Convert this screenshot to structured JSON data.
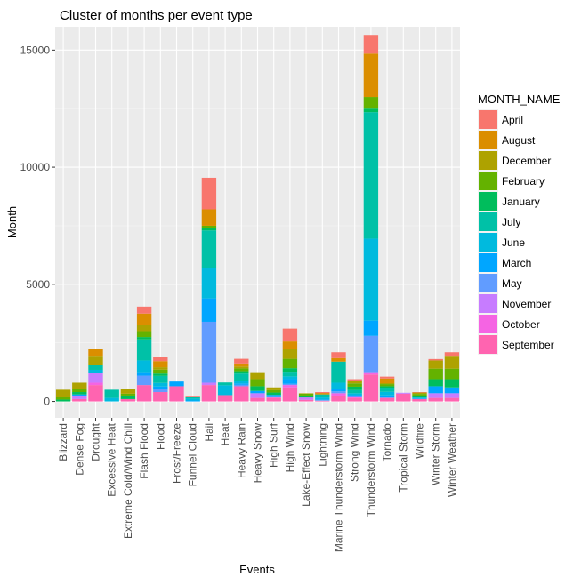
{
  "chart_data": {
    "type": "bar",
    "stacked": true,
    "title": "Cluster of months per event type",
    "xlabel": "Events",
    "ylabel": "Month",
    "ylim": [
      -700,
      16000
    ],
    "yticks": [
      0,
      5000,
      10000,
      15000
    ],
    "grid": true,
    "legend": {
      "title": "MONTH_NAME",
      "position": "right",
      "items": [
        {
          "name": "April",
          "color": "#F8766D"
        },
        {
          "name": "August",
          "color": "#DB8E00"
        },
        {
          "name": "December",
          "color": "#AEA200"
        },
        {
          "name": "February",
          "color": "#64B200"
        },
        {
          "name": "January",
          "color": "#00BD5C"
        },
        {
          "name": "July",
          "color": "#00C1A7"
        },
        {
          "name": "June",
          "color": "#00BADE"
        },
        {
          "name": "March",
          "color": "#00A6FF"
        },
        {
          "name": "May",
          "color": "#619CFF"
        },
        {
          "name": "November",
          "color": "#C77CFF"
        },
        {
          "name": "October",
          "color": "#F564E3"
        },
        {
          "name": "September",
          "color": "#FF64B0"
        }
      ]
    },
    "categories": [
      "Blizzard",
      "Dense Fog",
      "Drought",
      "Excessive Heat",
      "Extreme Cold/Wind Chill",
      "Flash Flood",
      "Flood",
      "Frost/Freeze",
      "Funnel Cloud",
      "Hail",
      "Heat",
      "Heavy Rain",
      "Heavy Snow",
      "High Surf",
      "High Wind",
      "Lake-Effect Snow",
      "Lightning",
      "Marine Thunderstorm Wind",
      "Strong Wind",
      "Thunderstorm Wind",
      "Tornado",
      "Tropical Storm",
      "Wildfire",
      "Winter Storm",
      "Winter Weather"
    ],
    "series": [
      {
        "name": "April",
        "values": [
          0,
          0,
          0,
          0,
          0,
          300,
          180,
          0,
          40,
          1350,
          0,
          200,
          0,
          0,
          550,
          0,
          40,
          250,
          60,
          800,
          80,
          0,
          20,
          60,
          150
        ]
      },
      {
        "name": "August",
        "values": [
          0,
          0,
          300,
          0,
          0,
          500,
          260,
          0,
          20,
          700,
          0,
          130,
          0,
          0,
          320,
          0,
          60,
          150,
          0,
          1850,
          200,
          0,
          0,
          0,
          0
        ]
      },
      {
        "name": "December",
        "values": [
          320,
          250,
          400,
          0,
          200,
          250,
          100,
          0,
          0,
          0,
          0,
          80,
          300,
          120,
          420,
          20,
          0,
          0,
          120,
          0,
          40,
          0,
          60,
          350,
          550
        ]
      },
      {
        "name": "February",
        "values": [
          100,
          150,
          0,
          0,
          80,
          250,
          170,
          0,
          0,
          100,
          0,
          120,
          300,
          100,
          400,
          80,
          0,
          0,
          140,
          500,
          90,
          0,
          70,
          450,
          450
        ]
      },
      {
        "name": "January",
        "values": [
          80,
          100,
          0,
          0,
          150,
          100,
          100,
          0,
          0,
          100,
          0,
          100,
          200,
          100,
          150,
          80,
          0,
          0,
          140,
          150,
          60,
          0,
          50,
          300,
          350
        ]
      },
      {
        "name": "July",
        "values": [
          0,
          0,
          200,
          350,
          0,
          900,
          300,
          0,
          60,
          1600,
          120,
          300,
          0,
          0,
          200,
          0,
          130,
          900,
          140,
          5400,
          180,
          0,
          40,
          0,
          0
        ]
      },
      {
        "name": "June",
        "values": [
          0,
          0,
          150,
          150,
          0,
          500,
          150,
          0,
          80,
          1300,
          420,
          120,
          0,
          0,
          120,
          0,
          80,
          250,
          80,
          3500,
          150,
          0,
          30,
          0,
          0
        ]
      },
      {
        "name": "March",
        "values": [
          0,
          50,
          0,
          0,
          0,
          150,
          100,
          200,
          40,
          1000,
          0,
          60,
          100,
          60,
          200,
          0,
          40,
          120,
          40,
          650,
          70,
          0,
          30,
          300,
          250
        ]
      },
      {
        "name": "May",
        "values": [
          0,
          0,
          0,
          0,
          0,
          400,
          140,
          0,
          0,
          2600,
          0,
          60,
          0,
          0,
          50,
          0,
          20,
          80,
          0,
          1550,
          40,
          0,
          0,
          0,
          0
        ]
      },
      {
        "name": "November",
        "values": [
          0,
          150,
          400,
          0,
          0,
          0,
          0,
          0,
          0,
          100,
          0,
          0,
          200,
          60,
          0,
          100,
          0,
          0,
          40,
          0,
          0,
          40,
          0,
          200,
          200
        ]
      },
      {
        "name": "October",
        "values": [
          0,
          0,
          100,
          0,
          0,
          0,
          0,
          0,
          0,
          0,
          0,
          0,
          0,
          0,
          100,
          0,
          0,
          100,
          40,
          100,
          0,
          0,
          0,
          0,
          0
        ]
      },
      {
        "name": "September",
        "values": [
          0,
          100,
          700,
          0,
          100,
          700,
          400,
          650,
          0,
          700,
          270,
          650,
          150,
          160,
          600,
          70,
          30,
          250,
          150,
          1150,
          150,
          330,
          100,
          150,
          150
        ]
      }
    ]
  }
}
